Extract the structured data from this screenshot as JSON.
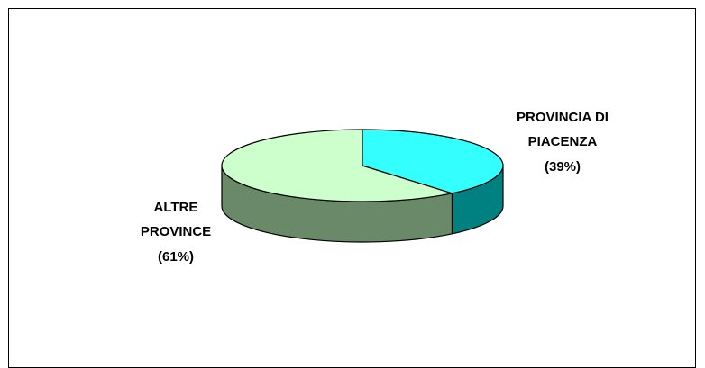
{
  "chart_data": {
    "type": "pie",
    "style": "3d",
    "categories": [
      "PROVINCIA DI PIACENZA",
      "ALTRE PROVINCE"
    ],
    "values": [
      39,
      61
    ],
    "colors": {
      "piacenza_top": "#33FFFF",
      "piacenza_side": "#008080",
      "altre_top": "#CCFFCC",
      "altre_side": "#698969"
    },
    "labels": [
      {
        "lines": [
          "PROVINCIA DI",
          "PIACENZA",
          "(39%)"
        ]
      },
      {
        "lines": [
          "ALTRE",
          "PROVINCE",
          "(61%)"
        ]
      }
    ],
    "legend": "none"
  }
}
